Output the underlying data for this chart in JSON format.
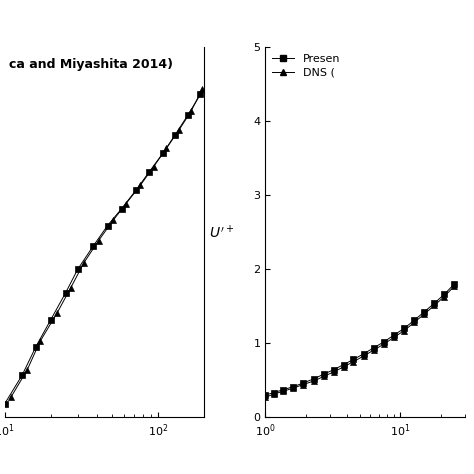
{
  "left_panel": {
    "annotation": "ca and Miyashita 2014)",
    "xlim": [
      10,
      200
    ],
    "ylim": [
      2.0,
      4.2
    ],
    "present_x": [
      10,
      13,
      16,
      20,
      25,
      30,
      38,
      47,
      58,
      72,
      88,
      108,
      130,
      158,
      190
    ],
    "present_y": [
      2.08,
      2.25,
      2.42,
      2.58,
      2.74,
      2.88,
      3.02,
      3.14,
      3.24,
      3.35,
      3.46,
      3.57,
      3.68,
      3.8,
      3.92
    ],
    "dns_x": [
      11,
      14,
      17,
      22,
      27,
      33,
      41,
      51,
      62,
      77,
      94,
      114,
      138,
      165,
      195
    ],
    "dns_y": [
      2.12,
      2.28,
      2.45,
      2.62,
      2.77,
      2.92,
      3.05,
      3.17,
      3.27,
      3.38,
      3.49,
      3.6,
      3.71,
      3.82,
      3.95
    ]
  },
  "right_panel": {
    "xlim": [
      1.0,
      30
    ],
    "ylim": [
      0,
      5
    ],
    "ylabel": "U'^+",
    "legend_labels": [
      "Presen",
      "DNS ("
    ],
    "present_x": [
      1.0,
      1.15,
      1.35,
      1.6,
      1.9,
      2.3,
      2.7,
      3.2,
      3.8,
      4.5,
      5.4,
      6.4,
      7.6,
      9.0,
      10.7,
      12.7,
      15.0,
      17.9,
      21.2,
      25.2
    ],
    "present_y": [
      0.3,
      0.33,
      0.37,
      0.41,
      0.46,
      0.52,
      0.58,
      0.64,
      0.71,
      0.78,
      0.86,
      0.94,
      1.02,
      1.11,
      1.2,
      1.31,
      1.42,
      1.54,
      1.66,
      1.8
    ],
    "dns_x": [
      1.0,
      1.15,
      1.35,
      1.6,
      1.9,
      2.3,
      2.7,
      3.2,
      3.8,
      4.5,
      5.4,
      6.4,
      7.6,
      9.0,
      10.7,
      12.7,
      15.0,
      17.9,
      21.2,
      25.2
    ],
    "dns_y": [
      0.27,
      0.31,
      0.35,
      0.39,
      0.44,
      0.49,
      0.55,
      0.61,
      0.68,
      0.75,
      0.83,
      0.91,
      0.99,
      1.08,
      1.17,
      1.28,
      1.39,
      1.51,
      1.63,
      1.77
    ]
  },
  "marker_color": "#000000",
  "line_color": "#000000",
  "bg_color": "#ffffff",
  "fontsize": 9,
  "tick_fontsize": 8,
  "annotation_fontsize": 9
}
